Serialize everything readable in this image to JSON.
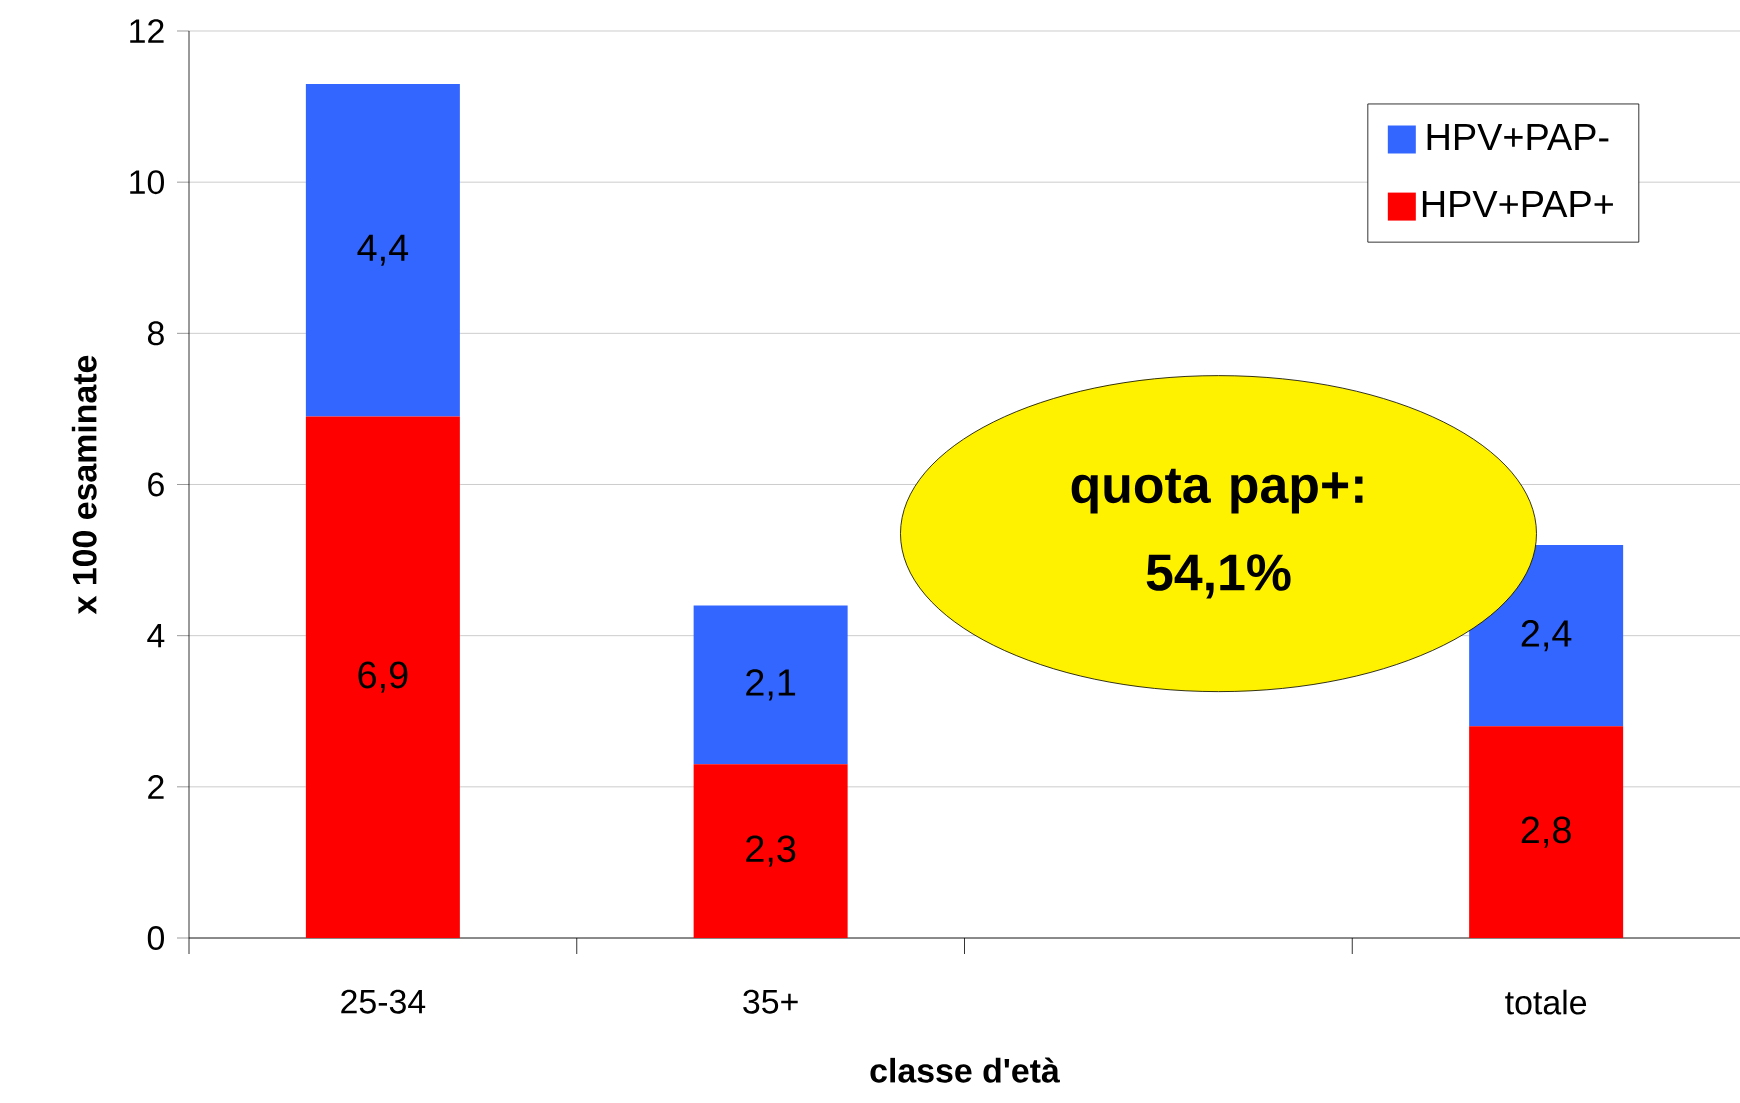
{
  "chart_data": {
    "type": "bar",
    "stacked": true,
    "xlabel": "classe d'età",
    "ylabel": "x 100 esaminate",
    "categories": [
      "25-34",
      "35+",
      null,
      "totale"
    ],
    "series": [
      {
        "name": "HPV+PAP+",
        "color": "#ff0000",
        "values": [
          6.9,
          2.3,
          null,
          2.8
        ],
        "value_labels": [
          "6,9",
          "2,3",
          null,
          "2,8"
        ]
      },
      {
        "name": "HPV+PAP-",
        "color": "#3366ff",
        "values": [
          4.4,
          2.1,
          null,
          2.4
        ],
        "value_labels": [
          "4,4",
          "2,1",
          null,
          "2,4"
        ]
      }
    ],
    "ylim": [
      0,
      12
    ],
    "yticks": [
      0,
      2,
      4,
      6,
      8,
      10,
      12
    ],
    "grid": "y",
    "legend": "top right",
    "annotations": [
      "quota pap+: 54,1%"
    ]
  }
}
